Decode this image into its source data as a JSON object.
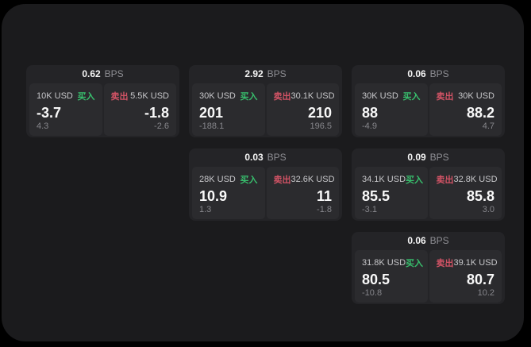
{
  "labels": {
    "bps": "BPS",
    "buy": "买入",
    "sell": "卖出"
  },
  "colors": {
    "background": "#000000",
    "panel": "#1b1b1d",
    "card": "#242427",
    "tile": "#2b2b2e",
    "buy_green": "#38bf6d",
    "sell_red": "#d25365",
    "value_white": "#f9f9f9",
    "label_gray": "#c7c7ca",
    "dim_gray": "#86868b"
  },
  "cards": [
    {
      "bps": "0.62",
      "buy": {
        "amount": "10K USD",
        "value": "-3.7",
        "sub": "4.3"
      },
      "sell": {
        "amount": "5.5K USD",
        "value": "-1.8",
        "sub": "-2.6"
      }
    },
    {
      "bps": "2.92",
      "buy": {
        "amount": "30K USD",
        "value": "201",
        "sub": "-188.1"
      },
      "sell": {
        "amount": "30.1K USD",
        "value": "210",
        "sub": "196.5"
      }
    },
    {
      "bps": "0.06",
      "buy": {
        "amount": "30K USD",
        "value": "88",
        "sub": "-4.9"
      },
      "sell": {
        "amount": "30K USD",
        "value": "88.2",
        "sub": "4.7"
      }
    },
    {
      "bps": "0.03",
      "buy": {
        "amount": "28K USD",
        "value": "10.9",
        "sub": "1.3"
      },
      "sell": {
        "amount": "32.6K USD",
        "value": "11",
        "sub": "-1.8"
      }
    },
    {
      "bps": "0.09",
      "buy": {
        "amount": "34.1K USD",
        "value": "85.5",
        "sub": "-3.1"
      },
      "sell": {
        "amount": "32.8K USD",
        "value": "85.8",
        "sub": "3.0"
      }
    },
    {
      "bps": "0.06",
      "buy": {
        "amount": "31.8K USD",
        "value": "80.5",
        "sub": "-10.8"
      },
      "sell": {
        "amount": "39.1K USD",
        "value": "80.7",
        "sub": "10.2"
      }
    }
  ]
}
